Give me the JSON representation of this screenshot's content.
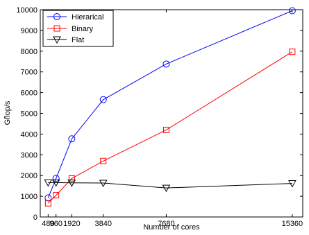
{
  "chart_data": {
    "type": "line",
    "xlabel": "Number of cores",
    "ylabel": "Gflop/s",
    "xlim": [
      0,
      16000
    ],
    "ylim": [
      0,
      10000
    ],
    "x_ticks": [
      480,
      960,
      1920,
      3840,
      7680,
      15360
    ],
    "x_tick_labels": [
      "480",
      "960",
      "1920",
      "3840",
      "7680",
      "15360"
    ],
    "y_ticks": [
      0,
      1000,
      2000,
      3000,
      4000,
      5000,
      6000,
      7000,
      8000,
      9000,
      10000
    ],
    "y_tick_labels": [
      "0",
      "1000",
      "2000",
      "3000",
      "4000",
      "5000",
      "6000",
      "7000",
      "8000",
      "9000",
      "10000"
    ],
    "grid": false,
    "legend_position": "top-left",
    "x": [
      480,
      960,
      1920,
      3840,
      7680,
      15360
    ],
    "series": [
      {
        "name": "Hierarical",
        "color": "#0000ff",
        "marker": "circle",
        "values": [
          920,
          1860,
          3770,
          5660,
          7380,
          9950
        ]
      },
      {
        "name": "Binary",
        "color": "#ff0000",
        "marker": "square",
        "values": [
          660,
          1050,
          1860,
          2700,
          4200,
          7970
        ]
      },
      {
        "name": "Flat",
        "color": "#000000",
        "marker": "triangle-down",
        "values": [
          1660,
          1660,
          1650,
          1640,
          1400,
          1620
        ]
      }
    ]
  }
}
